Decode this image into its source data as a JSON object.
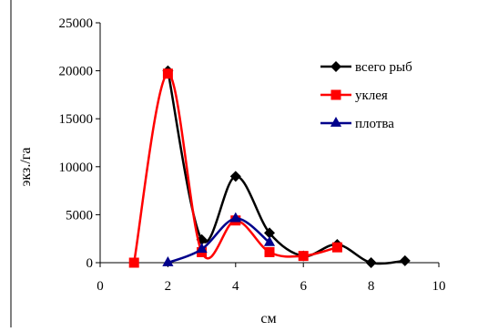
{
  "chart_data": {
    "type": "line",
    "title": "",
    "xlabel": "см",
    "ylabel": "экз./га",
    "xlim": [
      0,
      10
    ],
    "ylim": [
      0,
      25000
    ],
    "x_ticks": [
      0,
      2,
      4,
      6,
      8,
      10
    ],
    "y_ticks": [
      0,
      5000,
      10000,
      15000,
      20000,
      25000
    ],
    "grid": false,
    "legend_position": "right",
    "series": [
      {
        "name": "всего рыб",
        "color": "#000000",
        "marker": "diamond",
        "x": [
          2,
          3,
          4,
          5,
          6,
          7,
          8,
          9
        ],
        "y": [
          20000,
          2400,
          9000,
          3100,
          700,
          1900,
          0,
          200
        ]
      },
      {
        "name": "уклея",
        "color": "#ff0000",
        "marker": "square",
        "x": [
          1,
          2,
          3,
          4,
          5,
          6,
          7
        ],
        "y": [
          0,
          19700,
          1100,
          4400,
          1100,
          700,
          1600
        ]
      },
      {
        "name": "плотва",
        "color": "#00008b",
        "marker": "triangle",
        "x": [
          2,
          3,
          4,
          5
        ],
        "y": [
          0,
          1400,
          4600,
          2100
        ]
      }
    ]
  }
}
